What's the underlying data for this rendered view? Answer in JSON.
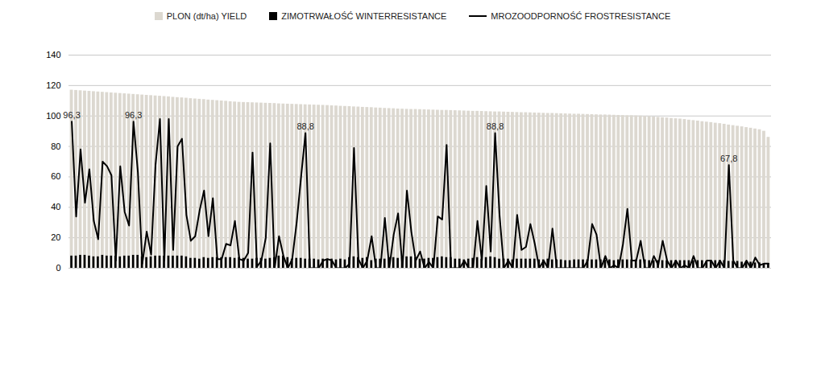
{
  "chart_data": {
    "type": "bar",
    "categories": [
      null,
      null,
      null,
      null,
      null,
      null,
      null,
      null,
      null,
      null,
      null,
      null,
      null,
      null,
      null,
      null,
      null,
      null,
      null,
      null,
      null,
      null,
      null,
      null,
      null,
      null,
      null,
      null,
      null,
      null,
      null,
      null,
      null,
      null,
      null,
      null,
      null,
      null,
      null,
      null,
      null,
      null,
      null,
      null,
      null,
      null,
      null,
      null,
      null,
      null,
      null,
      null,
      null,
      null,
      null,
      null,
      null,
      null,
      null,
      null,
      null,
      null,
      null,
      null,
      null,
      null,
      null,
      null,
      null,
      null,
      null,
      null,
      null,
      null,
      null,
      null,
      null,
      null,
      null,
      null,
      null,
      null,
      null,
      null,
      null,
      null,
      null,
      null,
      null,
      null,
      null,
      null,
      null,
      null,
      null,
      null,
      null,
      null,
      null,
      null,
      null,
      null,
      null,
      null,
      null,
      null,
      null,
      null,
      null,
      null,
      null,
      null,
      null,
      null,
      null,
      null,
      null,
      null,
      null,
      null,
      null,
      null,
      null,
      null,
      null,
      null,
      null,
      null,
      null,
      null,
      null,
      null,
      null,
      null,
      null,
      null,
      null,
      null,
      null,
      null,
      null,
      null,
      null,
      null,
      null,
      null,
      null,
      null,
      null,
      null,
      null,
      null,
      null,
      null,
      null,
      null,
      null,
      null,
      null
    ],
    "series": [
      {
        "name": "PLON (dt/ha) YIELD",
        "type": "bar",
        "color": "#dcd8d0",
        "values": [
          117,
          116.8,
          116.6,
          116.4,
          116.2,
          116,
          115.8,
          115.6,
          115.4,
          115.2,
          115,
          114.8,
          114.6,
          114.4,
          114.2,
          114,
          113.8,
          113.6,
          113.4,
          113.2,
          113,
          112.8,
          112.6,
          112.3,
          112.1,
          111.9,
          111.7,
          111.4,
          111.2,
          111,
          110.8,
          110.5,
          110.3,
          110.1,
          109.9,
          109.7,
          109.4,
          109.2,
          109,
          108.9,
          108.8,
          108.7,
          108.6,
          108.5,
          108.4,
          108.3,
          108.2,
          108,
          107.9,
          107.8,
          107.7,
          107.6,
          107.5,
          107.4,
          107.3,
          107.2,
          107.1,
          107,
          106.9,
          106.7,
          106.6,
          106.4,
          106.3,
          106.2,
          106,
          105.9,
          105.7,
          105.6,
          105.5,
          105.3,
          105.2,
          105,
          104.9,
          104.8,
          104.6,
          104.5,
          104.4,
          104.3,
          104.3,
          104.2,
          104.1,
          104,
          103.9,
          103.8,
          103.7,
          103.7,
          103.6,
          103.5,
          103.4,
          103.3,
          103.2,
          103.1,
          103.1,
          103,
          102.9,
          102.8,
          102.7,
          102.7,
          102.6,
          102.5,
          102.4,
          102.3,
          102.2,
          102.2,
          102.1,
          102,
          101.9,
          101.8,
          101.7,
          101.7,
          101.6,
          101.5,
          101.4,
          101.3,
          101.2,
          101.2,
          101.1,
          101,
          100.9,
          100.8,
          100.7,
          100.7,
          100.6,
          100.5,
          100.4,
          100.3,
          100.2,
          100.2,
          100.1,
          100,
          99.8,
          99.6,
          99.3,
          99.1,
          98.9,
          98.7,
          98.4,
          98.2,
          98,
          97.7,
          97.3,
          97,
          96.7,
          96.3,
          96,
          95.7,
          95.3,
          95,
          94.6,
          94.1,
          93.7,
          93.3,
          92.9,
          92.4,
          92,
          91.5,
          91,
          90,
          86
        ]
      },
      {
        "name": "ZIMOTRWAŁOŚĆ WINTERRESISTANCE",
        "type": "bar",
        "color": "#000000",
        "values": [
          8,
          8,
          8.5,
          8.5,
          8,
          7.5,
          7.5,
          8.5,
          8,
          8,
          8,
          7.5,
          8,
          8,
          8.5,
          8.5,
          7.5,
          7,
          7.5,
          8,
          8,
          8,
          8,
          8,
          8,
          8,
          7.5,
          6.5,
          6.5,
          6,
          7,
          6.5,
          7,
          7,
          7,
          7,
          7,
          6.5,
          7,
          6.5,
          6,
          6,
          6.5,
          6.5,
          6,
          6.5,
          7,
          8,
          8,
          7,
          6,
          6.5,
          6.5,
          6,
          6,
          6,
          5.5,
          6,
          6,
          6,
          5.5,
          6,
          5.5,
          7,
          7.5,
          7,
          6.5,
          7,
          5,
          6,
          6,
          6,
          7,
          7,
          6.5,
          7,
          7.5,
          7.5,
          7,
          6,
          6,
          6.5,
          6.5,
          7,
          7.5,
          7,
          7,
          6,
          6,
          5.5,
          6,
          6.5,
          7,
          6,
          7,
          7.5,
          7,
          6,
          6,
          6,
          5.5,
          6,
          6,
          6,
          6,
          6,
          5.5,
          5.5,
          6,
          5.5,
          5.5,
          5.5,
          5,
          5,
          5.5,
          5.5,
          5.5,
          5.5,
          5.5,
          5.5,
          5.5,
          5.5,
          5.5,
          5,
          5.5,
          5.5,
          5.5,
          5.5,
          5.5,
          5.5,
          5.5,
          5,
          5,
          5,
          5,
          5,
          5,
          5,
          5,
          5,
          5,
          5,
          5,
          5,
          4.5,
          5,
          5,
          5,
          5,
          4.5,
          4.5,
          4.5,
          4,
          4,
          4,
          3.5,
          3.5,
          3,
          3
        ]
      },
      {
        "name": "MROZOODPORNOŚĆ FROSTRESISTANCE",
        "type": "line",
        "color": "#000000",
        "values": [
          96.3,
          34,
          78,
          43,
          65,
          31,
          19,
          70,
          67,
          61,
          5,
          67,
          37,
          28,
          96.3,
          63,
          3,
          24,
          9,
          68,
          98,
          5,
          98,
          12,
          80,
          85,
          35,
          18,
          21,
          38,
          51,
          21,
          46,
          6,
          6,
          16,
          15,
          31,
          6,
          5,
          10,
          76,
          1,
          5,
          20,
          82,
          0,
          21,
          8,
          0,
          6,
          30,
          60,
          88.8,
          0,
          0,
          0,
          5,
          6,
          5,
          0,
          0,
          0,
          3,
          79,
          6,
          0,
          5,
          21,
          0,
          0,
          33,
          0,
          22,
          36,
          0,
          51,
          24,
          5,
          11,
          0,
          4,
          0,
          34,
          32,
          81,
          0,
          0,
          0,
          5,
          0,
          0,
          31,
          5,
          54,
          11,
          88.8,
          35,
          0,
          5,
          0,
          35,
          12,
          14,
          29,
          16,
          0,
          5,
          0,
          26,
          0,
          0,
          0,
          0,
          0,
          0,
          0,
          5,
          29,
          22,
          0,
          8,
          0,
          2,
          0,
          16,
          39,
          5,
          5,
          18,
          0,
          0,
          8,
          2,
          18,
          5,
          0,
          5,
          0,
          2,
          0,
          8,
          0,
          0,
          5,
          5,
          0,
          5,
          0,
          67.8,
          5,
          0,
          0,
          5,
          0,
          7,
          2,
          3,
          3
        ],
        "value_labels": [
          "96,3",
          null,
          null,
          null,
          null,
          null,
          null,
          null,
          null,
          null,
          null,
          null,
          null,
          null,
          "96,3",
          null,
          null,
          null,
          null,
          null,
          null,
          null,
          null,
          null,
          null,
          null,
          null,
          null,
          null,
          null,
          null,
          null,
          null,
          null,
          null,
          null,
          null,
          null,
          null,
          null,
          null,
          null,
          null,
          null,
          null,
          null,
          null,
          null,
          null,
          null,
          null,
          null,
          null,
          "88,8",
          null,
          null,
          null,
          null,
          null,
          null,
          null,
          null,
          null,
          null,
          null,
          null,
          null,
          null,
          null,
          null,
          null,
          null,
          null,
          null,
          null,
          null,
          null,
          null,
          null,
          null,
          null,
          null,
          null,
          null,
          null,
          null,
          null,
          null,
          null,
          null,
          null,
          null,
          null,
          null,
          null,
          null,
          "88,8",
          null,
          null,
          null,
          null,
          null,
          null,
          null,
          null,
          null,
          null,
          null,
          null,
          null,
          null,
          null,
          null,
          null,
          null,
          null,
          null,
          null,
          null,
          null,
          null,
          null,
          null,
          null,
          null,
          null,
          null,
          null,
          null,
          null,
          null,
          null,
          null,
          null,
          null,
          null,
          null,
          null,
          null,
          null,
          null,
          null,
          null,
          null,
          null,
          null,
          null,
          null,
          null,
          "67,8",
          null,
          null,
          null,
          null,
          null,
          null,
          null,
          null,
          null
        ]
      }
    ],
    "ylim": [
      0,
      140
    ],
    "yticks": [
      0,
      20,
      40,
      60,
      80,
      100,
      120,
      140
    ],
    "grid": true,
    "legend": "top",
    "stacked": false,
    "data_labels": true,
    "tick_labels": "y"
  }
}
